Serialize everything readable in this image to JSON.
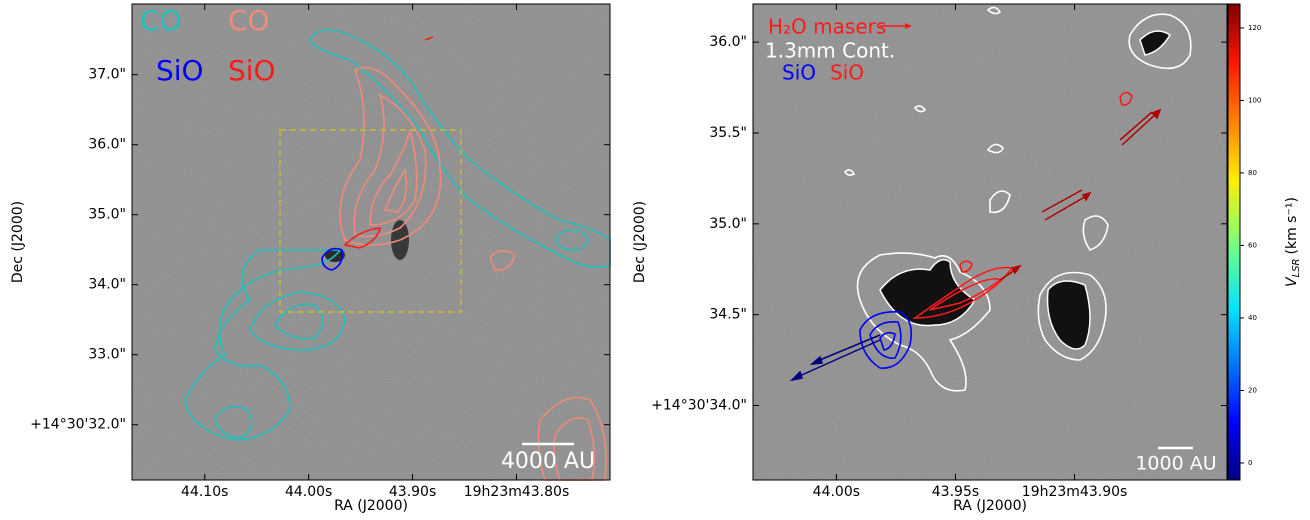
{
  "chart_data": [
    {
      "type": "image",
      "xlabel": "RA (J2000)",
      "ylabel": "Dec (J2000)",
      "xlim": [
        44.17,
        43.71
      ],
      "ylim": [
        31.21,
        38.01
      ],
      "xticks": [
        {
          "value": 44.1,
          "label": "44.10s"
        },
        {
          "value": 44.0,
          "label": "44.00s"
        },
        {
          "value": 43.9,
          "label": "43.90s"
        },
        {
          "value": 43.8,
          "label": "19h23m43.80s"
        }
      ],
      "yticks": [
        {
          "value": 37.0,
          "label": "37.0\""
        },
        {
          "value": 36.0,
          "label": "36.0\""
        },
        {
          "value": 35.0,
          "label": "35.0\""
        },
        {
          "value": 34.0,
          "label": "34.0\""
        },
        {
          "value": 33.0,
          "label": "33.0\""
        },
        {
          "value": 32.0,
          "label": "+14°30'32.0\""
        }
      ],
      "legend": [
        {
          "label": "CO",
          "color": "#22bfbf"
        },
        {
          "label": "CO",
          "color": "#f28a78"
        },
        {
          "label": "SiO",
          "color": "#0000ff"
        },
        {
          "label": "SiO",
          "color": "#ff1a1a"
        }
      ],
      "scalebar": "4000 AU"
    },
    {
      "type": "image",
      "xlabel": "RA (J2000)",
      "ylabel": "Dec (J2000)",
      "xlim": [
        44.035,
        43.836
      ],
      "ylim": [
        33.59,
        36.21
      ],
      "xticks": [
        {
          "value": 44.0,
          "label": "44.00s"
        },
        {
          "value": 43.95,
          "label": "43.95s"
        },
        {
          "value": 43.9,
          "label": "19h23m43.90s"
        }
      ],
      "yticks": [
        {
          "value": 36.0,
          "label": "36.0\""
        },
        {
          "value": 35.5,
          "label": "35.5\""
        },
        {
          "value": 35.0,
          "label": "35.0\""
        },
        {
          "value": 34.5,
          "label": "34.5\""
        },
        {
          "value": 34.0,
          "label": "+14°30'34.0\""
        }
      ],
      "legend": [
        {
          "label": "H₂O masers",
          "color": "#ff1a1a"
        },
        {
          "label": "1.3mm Cont.",
          "color": "#ffffff"
        },
        {
          "label": "SiO",
          "color": "#0000ff"
        },
        {
          "label": "SiO",
          "color": "#ff1a1a"
        }
      ],
      "scalebar": "1000 AU",
      "colorbar": {
        "symbol": "V",
        "subscript": "LSR",
        "unit": "(km s⁻¹)",
        "clim": [
          -4.7,
          126.6
        ],
        "ticks": [
          0,
          20,
          40,
          60,
          80,
          100,
          120
        ]
      }
    }
  ]
}
